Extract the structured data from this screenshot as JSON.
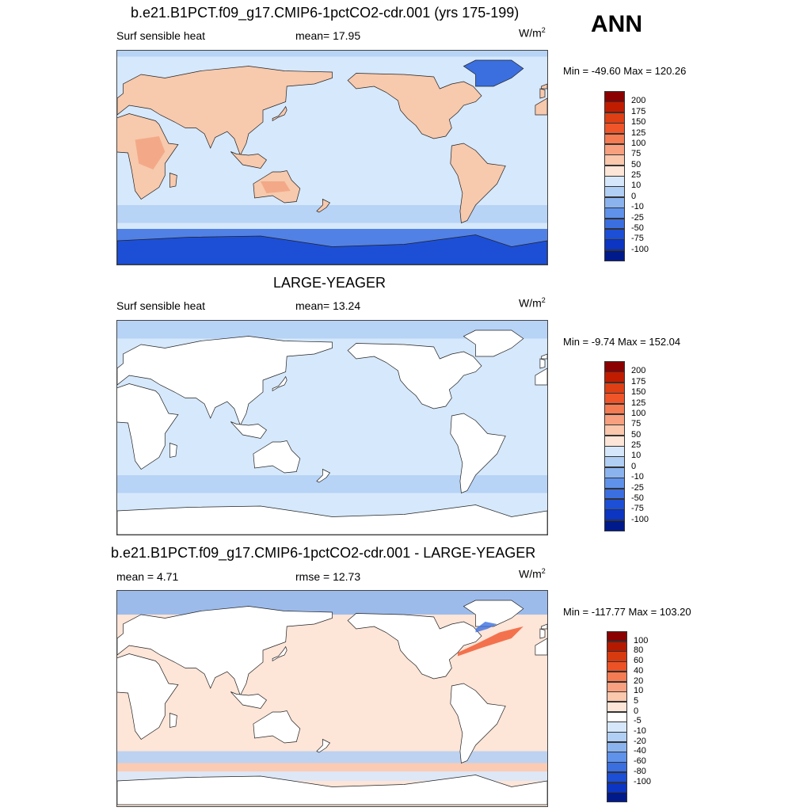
{
  "season_label": "ANN",
  "panels": [
    {
      "title": "b.e21.B1PCT.f09_g17.CMIP6-1pctCO2-cdr.001 (yrs 175-199)",
      "left_label": "Surf sensible heat",
      "mid_label": "mean=  17.95",
      "unit_main": "W/m",
      "unit_sup": "2",
      "minmax": "Min = -49.60 Max = 120.26",
      "ocean_color": "#d6e8fb",
      "land_color": "#f7c9ad",
      "land_alt_color": "#f3a987",
      "land_ocean_same": false,
      "colorbar": {
        "colors": [
          "#8b0000",
          "#c21c00",
          "#de3f14",
          "#f0552a",
          "#f57b52",
          "#f8a07f",
          "#fbc7ad",
          "#fde5d8",
          "#d7e7fb",
          "#b1cff5",
          "#8bb4ef",
          "#5f92ea",
          "#3b6fe0",
          "#1d4fd6",
          "#0b35c2",
          "#001a8c"
        ],
        "labels": [
          "200",
          "175",
          "150",
          "125",
          "100",
          "75",
          "50",
          "25",
          "10",
          "0",
          "-10",
          "-25",
          "-50",
          "-75",
          "-100"
        ]
      }
    },
    {
      "title": "LARGE-YEAGER",
      "left_label": "Surf sensible heat",
      "mid_label": "mean=  13.24",
      "unit_main": "W/m",
      "unit_sup": "2",
      "minmax": "Min =  -9.74 Max = 152.04",
      "ocean_color": "#d6e8fb",
      "land_color": "#ffffff",
      "land_alt_color": "#ffffff",
      "land_ocean_same": false,
      "colorbar": {
        "colors": [
          "#8b0000",
          "#c21c00",
          "#de3f14",
          "#f0552a",
          "#f57b52",
          "#f8a07f",
          "#fbc7ad",
          "#fde5d8",
          "#d7e7fb",
          "#b1cff5",
          "#8bb4ef",
          "#5f92ea",
          "#3b6fe0",
          "#1d4fd6",
          "#0b35c2",
          "#001a8c"
        ],
        "labels": [
          "200",
          "175",
          "150",
          "125",
          "100",
          "75",
          "50",
          "25",
          "10",
          "0",
          "-10",
          "-25",
          "-50",
          "-75",
          "-100"
        ]
      }
    },
    {
      "title": "b.e21.B1PCT.f09_g17.CMIP6-1pctCO2-cdr.001 - LARGE-YEAGER",
      "left_label": "mean =   4.71",
      "mid_label": "rmse =  12.73",
      "unit_main": "W/m",
      "unit_sup": "2",
      "minmax": "Min = -117.77 Max = 103.20",
      "ocean_color": "#fde5d8",
      "land_color": "#ffffff",
      "land_alt_color": "#ffffff",
      "land_ocean_same": false,
      "colorbar": {
        "colors": [
          "#8b0000",
          "#b51a00",
          "#d83a10",
          "#ec5226",
          "#f57b52",
          "#f8a07f",
          "#fbc7ad",
          "#fde5d8",
          "#ffffff",
          "#d7e7fb",
          "#b1cff5",
          "#8bb4ef",
          "#5f92ea",
          "#3b6fe0",
          "#1d4fd6",
          "#0b35c2",
          "#001a8c"
        ],
        "labels": [
          "100",
          "80",
          "60",
          "40",
          "20",
          "10",
          "5",
          "0",
          "-5",
          "-10",
          "-20",
          "-40",
          "-60",
          "-80",
          "-100"
        ]
      }
    }
  ]
}
